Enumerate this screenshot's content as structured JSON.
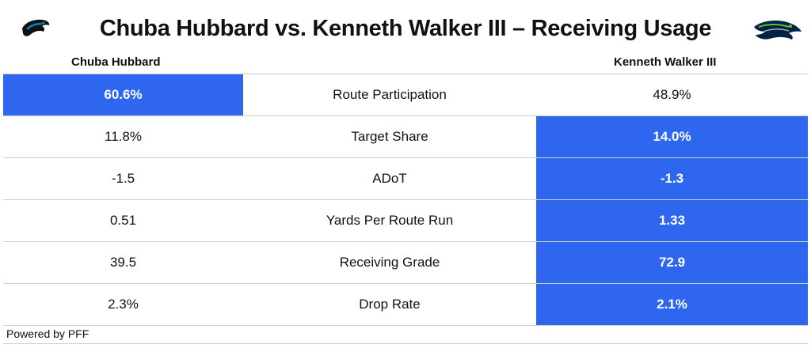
{
  "title": "Chuba Hubbard vs. Kenneth Walker III – Receiving Usage",
  "player_left": "Chuba Hubbard",
  "player_right": "Kenneth Walker III",
  "highlight_color": "#2f66f0",
  "logos": {
    "left": "panthers-logo",
    "right": "seahawks-logo"
  },
  "rows": [
    {
      "left": "60.6%",
      "metric": "Route Participation",
      "right": "48.9%",
      "winner": "left"
    },
    {
      "left": "11.8%",
      "metric": "Target Share",
      "right": "14.0%",
      "winner": "right"
    },
    {
      "left": "-1.5",
      "metric": "ADoT",
      "right": "-1.3",
      "winner": "right"
    },
    {
      "left": "0.51",
      "metric": "Yards Per Route Run",
      "right": "1.33",
      "winner": "right"
    },
    {
      "left": "39.5",
      "metric": "Receiving Grade",
      "right": "72.9",
      "winner": "right"
    },
    {
      "left": "2.3%",
      "metric": "Drop Rate",
      "right": "2.1%",
      "winner": "right"
    }
  ],
  "footer": "Powered by PFF"
}
